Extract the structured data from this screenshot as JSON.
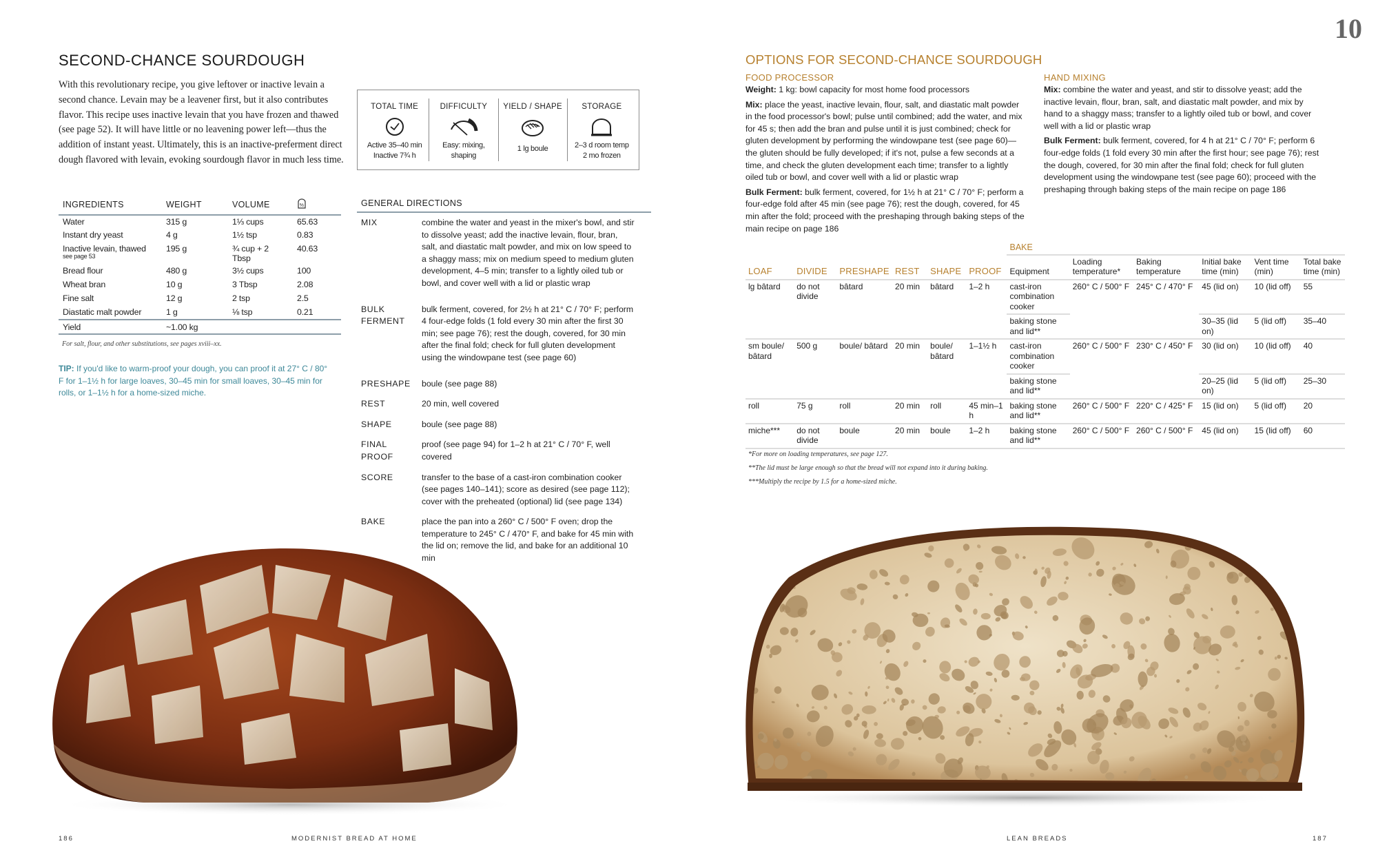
{
  "left": {
    "title": "SECOND-CHANCE SOURDOUGH",
    "intro": "With this revolutionary recipe, you give leftover or inactive levain a second chance. Levain may be a leavener first, but it also contributes flavor. This recipe uses inactive levain that you have frozen and thawed (see page 52). It will have little or no leavening power left—thus the addition of instant yeast. Ultimately, this is an inactive-preferment direct dough flavored with levain, evoking sourdough flavor in much less time.",
    "info": [
      {
        "label": "TOTAL TIME",
        "icon": "clock-icon",
        "line1": "Active 35–40 min",
        "line2": "Inactive 7¾ h"
      },
      {
        "label": "DIFFICULTY",
        "icon": "gauge-icon",
        "line1": "Easy: mixing,",
        "line2": "shaping"
      },
      {
        "label": "YIELD / SHAPE",
        "icon": "boule-icon",
        "line1": "1 lg boule",
        "line2": ""
      },
      {
        "label": "STORAGE",
        "icon": "storage-dome-icon",
        "line1": "2–3 d room temp",
        "line2": "2 mo frozen"
      }
    ],
    "ingredients": {
      "headers": [
        "INGREDIENTS",
        "WEIGHT",
        "VOLUME",
        "%"
      ],
      "rows": [
        {
          "name": "Water",
          "note": "",
          "weight": "315 g",
          "volume": "1⅓ cups",
          "pct": "65.63"
        },
        {
          "name": "Instant dry yeast",
          "note": "",
          "weight": "4 g",
          "volume": "1½ tsp",
          "pct": "0.83"
        },
        {
          "name": "Inactive levain, thawed",
          "note": "see page 53",
          "weight": "195 g",
          "volume": "¾ cup + 2 Tbsp",
          "pct": "40.63"
        },
        {
          "name": "Bread flour",
          "note": "",
          "weight": "480 g",
          "volume": "3½ cups",
          "pct": "100"
        },
        {
          "name": "Wheat bran",
          "note": "",
          "weight": "10 g",
          "volume": "3 Tbsp",
          "pct": "2.08"
        },
        {
          "name": "Fine salt",
          "note": "",
          "weight": "12 g",
          "volume": "2 tsp",
          "pct": "2.5"
        },
        {
          "name": "Diastatic malt powder",
          "note": "",
          "weight": "1 g",
          "volume": "⅛ tsp",
          "pct": "0.21"
        }
      ],
      "yield_label": "Yield",
      "yield_value": "~1.00 kg"
    },
    "substitutions_note": "For salt, flour, and other substitutions, see pages xviii–xx.",
    "tip_label": "TIP:",
    "tip_text": " If you'd like to warm-proof your dough, you can proof it at 27° C / 80° F for 1–1½ h for large loaves, 30–45 min for small loaves, 30–45 min for rolls, or 1–1½ h for a home-sized miche.",
    "directions": {
      "title": "GENERAL DIRECTIONS",
      "steps": [
        {
          "label": "MIX",
          "text": "combine the water and yeast in the mixer's bowl, and stir to dissolve yeast; add the inactive levain, flour, bran, salt, and diastatic malt powder, and mix on low speed to a shaggy mass; mix on medium speed to medium gluten development, 4–5 min; transfer to a lightly oiled tub or bowl, and cover well with a lid or plastic wrap"
        },
        {
          "label": "BULK\nFERMENT",
          "text": "bulk ferment, covered, for 2½ h at 21° C / 70° F; perform 4 four-edge folds (1 fold every 30 min after the first 30 min; see page 76); rest the dough, covered, for 30 min after the final fold; check for full gluten development using the windowpane test (see page 60)"
        },
        {
          "label": "PRESHAPE",
          "text": "boule (see page 88)"
        },
        {
          "label": "REST",
          "text": "20 min, well covered"
        },
        {
          "label": "SHAPE",
          "text": "boule (see page 88)"
        },
        {
          "label": "FINAL\nPROOF",
          "text": "proof (see page 94) for 1–2 h at 21° C / 70° F, well covered"
        },
        {
          "label": "SCORE",
          "text": "transfer to the base of a cast-iron combination cooker (see pages 140–141); score as desired (see page 112); cover with the preheated (optional) lid (see page 134)"
        },
        {
          "label": "BAKE",
          "text": "place the pan into a 260° C / 500° F oven; drop the temperature to 245° C / 470° F, and bake for 45 min with the lid on; remove the lid, and bake for an additional 10 min"
        }
      ]
    },
    "folio": "186",
    "running_head": "MODERNIST BREAD AT HOME"
  },
  "right": {
    "chapter_number": "10",
    "title": "OPTIONS FOR SECOND-CHANCE SOURDOUGH",
    "food_processor": {
      "heading": "FOOD PROCESSOR",
      "weight_label": "Weight:",
      "weight_text": " 1 kg: bowl capacity for most home food processors",
      "mix_label": "Mix:",
      "mix_text": " place the yeast, inactive levain, flour, salt, and diastatic malt powder in the food processor's bowl; pulse until combined; add the water, and mix for 45 s; then add the bran and pulse until it is just combined; check for gluten development by performing the windowpane test (see page 60)—the gluten should be fully developed; if it's not, pulse a few seconds at a time, and check the gluten development each time; transfer to a lightly oiled tub or bowl, and cover well with a lid or plastic wrap",
      "bulk_label": "Bulk Ferment:",
      "bulk_text": " bulk ferment, covered, for 1½ h at 21° C / 70° F; perform a four-edge fold after 45 min (see page 76); rest the dough, covered, for 45 min after the fold; proceed with the preshaping through baking steps of the main recipe on page 186"
    },
    "hand_mixing": {
      "heading": "HAND MIXING",
      "mix_label": "Mix:",
      "mix_text": " combine the water and yeast, and stir to dissolve yeast; add the inactive levain, flour, bran, salt, and diastatic malt powder, and mix by hand to a shaggy mass; transfer to a lightly oiled tub or bowl, and cover well with a lid or plastic wrap",
      "bulk_label": "Bulk Ferment:",
      "bulk_text": " bulk ferment, covered, for 4 h at 21° C / 70° F; perform 6 four-edge folds (1 fold every 30 min after the first hour; see page 76); rest the dough, covered, for 30 min after the final fold; check for full gluten development using the windowpane test (see page 60); proceed with the preshaping through baking steps of the main recipe on page 186"
    },
    "bake_table": {
      "group_label": "BAKE",
      "headers": [
        "LOAF",
        "DIVIDE",
        "PRESHAPE",
        "REST",
        "SHAPE",
        "PROOF"
      ],
      "bake_headers": [
        "Equipment",
        "Loading temperature*",
        "Baking temperature",
        "Initial bake time (min)",
        "Vent time (min)",
        "Total bake time (min)"
      ],
      "rows": [
        {
          "loaf": "lg bâtard",
          "divide": "do not divide",
          "preshape": "bâtard",
          "rest": "20 min",
          "shape": "bâtard",
          "proof": "1–2 h",
          "loading": "260° C / 500° F",
          "baking": "245° C / 470° F",
          "options": [
            {
              "equipment": "cast-iron combination cooker",
              "initial": "45 (lid on)",
              "vent": "10 (lid off)",
              "total": "55"
            },
            {
              "equipment": "baking stone and lid**",
              "initial": "30–35 (lid on)",
              "vent": "5 (lid off)",
              "total": "35–40"
            }
          ]
        },
        {
          "loaf": "sm boule/ bâtard",
          "divide": "500 g",
          "preshape": "boule/ bâtard",
          "rest": "20 min",
          "shape": "boule/ bâtard",
          "proof": "1–1½ h",
          "loading": "260° C / 500° F",
          "baking": "230° C / 450° F",
          "options": [
            {
              "equipment": "cast-iron combination cooker",
              "initial": "30 (lid on)",
              "vent": "10 (lid off)",
              "total": "40"
            },
            {
              "equipment": "baking stone and lid**",
              "initial": "20–25 (lid on)",
              "vent": "5 (lid off)",
              "total": "25–30"
            }
          ]
        },
        {
          "loaf": "roll",
          "divide": "75 g",
          "preshape": "roll",
          "rest": "20 min",
          "shape": "roll",
          "proof": "45 min–1 h",
          "loading": "260° C / 500° F",
          "baking": "220° C / 425° F",
          "options": [
            {
              "equipment": "baking stone and lid**",
              "initial": "15 (lid on)",
              "vent": "5 (lid off)",
              "total": "20"
            }
          ]
        },
        {
          "loaf": "miche***",
          "divide": "do not divide",
          "preshape": "boule",
          "rest": "20 min",
          "shape": "boule",
          "proof": "1–2 h",
          "loading": "260° C / 500° F",
          "baking": "260° C / 500° F",
          "options": [
            {
              "equipment": "baking stone and lid**",
              "initial": "45 (lid on)",
              "vent": "15 (lid off)",
              "total": "60"
            }
          ]
        }
      ],
      "footnotes": [
        "*For more on loading temperatures, see page 127.",
        "**The lid must be large enough so that the bread will not expand into it during baking.",
        "***Multiply the recipe by 1.5 for a home-sized miche."
      ]
    },
    "folio": "187",
    "running_head": "LEAN BREADS"
  },
  "colors": {
    "accent_gold": "#b7812f",
    "tip_teal": "#3d8898",
    "rule": "#8d9ea9"
  }
}
